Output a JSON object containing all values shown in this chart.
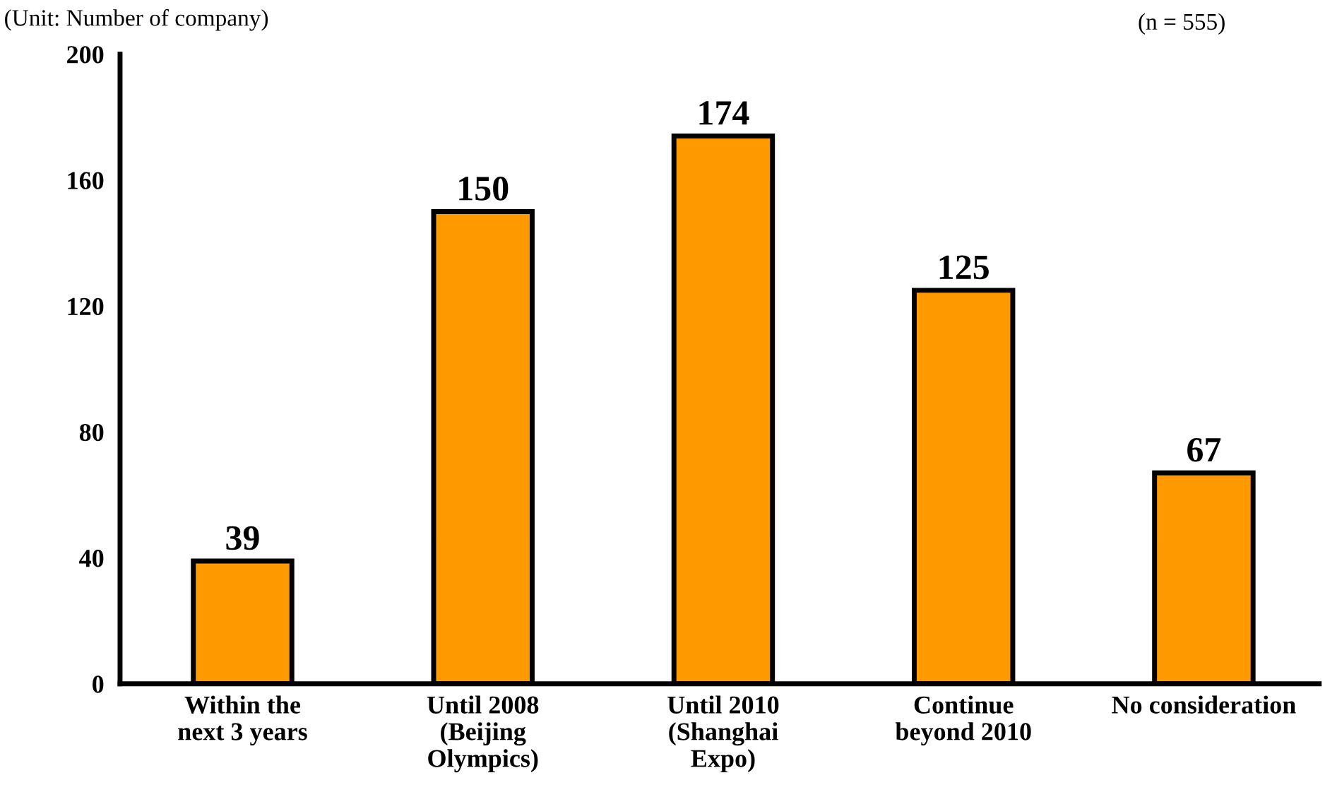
{
  "chart_data": {
    "type": "bar",
    "categories": [
      "Within the\nnext 3 years",
      "Until 2008\n(Beijing\nOlympics)",
      "Until 2010\n(Shanghai\nExpo)",
      "Continue\nbeyond 2010",
      "No consideration"
    ],
    "values": [
      39,
      150,
      174,
      125,
      67
    ],
    "color": "#ff9900",
    "ylim": [
      0,
      200
    ],
    "yticks": [
      0,
      40,
      80,
      120,
      160,
      200
    ],
    "grid": false,
    "legend": false,
    "data_labels": true,
    "annotations": [
      "(Unit: Number of company)",
      "(n = 555)"
    ]
  }
}
